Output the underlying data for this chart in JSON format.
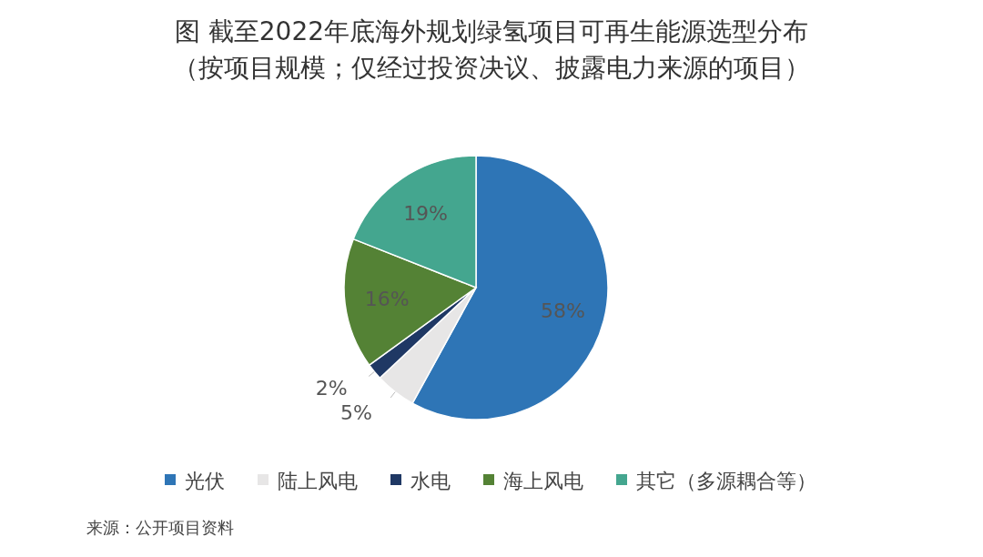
{
  "chart_data": {
    "type": "pie",
    "title": "图  截至2022年底海外规划绿氢项目可再生能源选型分布",
    "subtitle": "（按项目规模；仅经过投资决议、披露电力来源的项目）",
    "categories": [
      "光伏",
      "陆上风电",
      "水电",
      "海上风电",
      "其它（多源耦合等）"
    ],
    "values": [
      58,
      5,
      2,
      16,
      19
    ],
    "colors": [
      "#2e75b6",
      "#e7e6e6",
      "#1f3864",
      "#548235",
      "#44a68f"
    ],
    "value_labels": [
      "58%",
      "5%",
      "2%",
      "16%",
      "19%"
    ],
    "legend": "bottom",
    "annotations": [
      "来源：公开项目资料"
    ]
  }
}
